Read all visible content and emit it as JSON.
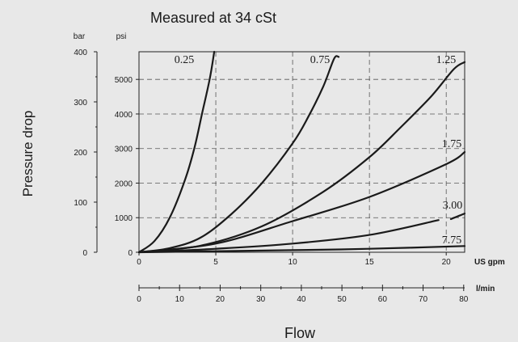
{
  "chart_data": {
    "type": "line",
    "title": "Measured at 34 cSt",
    "ylabel": "Pressure drop",
    "xlabel": "Flow",
    "left_axis_unit": "bar",
    "right_axis_unit": "psi",
    "bottom_axis_unit_gpm": "US gpm",
    "bottom_axis_unit_lmin": "l/min",
    "xlim_gpm": [
      0,
      21.2
    ],
    "ylim_psi": [
      0,
      5800
    ],
    "ylim_bar": [
      0,
      400
    ],
    "bar_ticks": [
      "0",
      "100",
      "200",
      "300",
      "400"
    ],
    "psi_ticks": [
      "0",
      "1000",
      "2000",
      "3000",
      "4000",
      "5000"
    ],
    "gpm_ticks": [
      "0",
      "5",
      "10",
      "15",
      "20"
    ],
    "lmin_ticks": [
      "0",
      "10",
      "20",
      "30",
      "40",
      "50",
      "60",
      "70",
      "80"
    ],
    "grid": "dashed vertical lines at 5, 10, 15, 20 US gpm; dashed horizontal lines at each 1000 psi",
    "series": [
      {
        "name": "0.25",
        "points": [
          [
            0,
            0
          ],
          [
            1,
            320
          ],
          [
            2,
            1000
          ],
          [
            3,
            2100
          ],
          [
            3.6,
            3000
          ],
          [
            4.1,
            4000
          ],
          [
            4.6,
            5000
          ],
          [
            4.9,
            5800
          ]
        ]
      },
      {
        "name": "0.75",
        "points": [
          [
            0,
            0
          ],
          [
            2,
            120
          ],
          [
            4,
            420
          ],
          [
            6,
            1100
          ],
          [
            8,
            2000
          ],
          [
            10,
            3150
          ],
          [
            11,
            3900
          ],
          [
            12,
            4800
          ],
          [
            12.7,
            5600
          ],
          [
            13,
            5650
          ]
        ]
      },
      {
        "name": "1.25",
        "points": [
          [
            0,
            0
          ],
          [
            4,
            190
          ],
          [
            8,
            750
          ],
          [
            12,
            1750
          ],
          [
            15,
            2750
          ],
          [
            17,
            3600
          ],
          [
            19,
            4500
          ],
          [
            20.5,
            5300
          ],
          [
            21.2,
            5500
          ]
        ]
      },
      {
        "name": "1.75",
        "points": [
          [
            0,
            0
          ],
          [
            5,
            250
          ],
          [
            10,
            900
          ],
          [
            15,
            1600
          ],
          [
            20,
            2550
          ],
          [
            21.2,
            2900
          ]
        ]
      },
      {
        "name": "3.00",
        "points": [
          [
            0,
            0
          ],
          [
            5,
            100
          ],
          [
            10,
            250
          ],
          [
            15,
            500
          ],
          [
            19.5,
            930
          ]
        ]
      },
      {
        "name": "3.00",
        "points": [
          [
            20.3,
            960
          ],
          [
            21.2,
            1120
          ]
        ]
      },
      {
        "name": "7.75",
        "points": [
          [
            0,
            0
          ],
          [
            10,
            60
          ],
          [
            15,
            100
          ],
          [
            21.2,
            180
          ]
        ]
      }
    ]
  }
}
